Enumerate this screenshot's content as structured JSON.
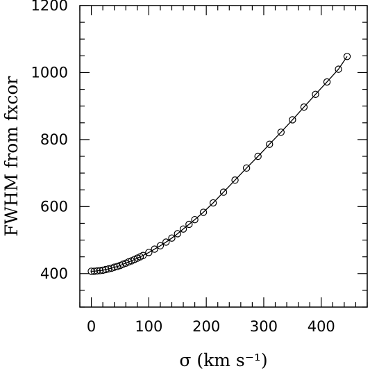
{
  "chart_data": {
    "type": "line",
    "xlabel": "σ   (km s⁻¹)",
    "ylabel": "FWHM from fxcor",
    "xlim": [
      -20,
      480
    ],
    "ylim": [
      300,
      1200
    ],
    "xticks": [
      0,
      100,
      200,
      300,
      400
    ],
    "yticks": [
      400,
      600,
      800,
      1000,
      1200
    ],
    "xtick_labels": [
      "0",
      "100",
      "200",
      "300",
      "400"
    ],
    "ytick_labels": [
      "400",
      "600",
      "800",
      "1000",
      "1200"
    ],
    "x_minor_step": 20,
    "y_minor_step": 50,
    "marker": "open-circle",
    "line_color": "#000000",
    "grid": false,
    "series": [
      {
        "x": [
          0,
          5,
          10,
          15,
          20,
          25,
          30,
          35,
          40,
          45,
          50,
          55,
          60,
          65,
          70,
          75,
          80,
          85,
          90,
          100,
          110,
          120,
          130,
          140,
          150,
          160,
          170,
          180,
          195,
          212,
          230,
          250,
          270,
          290,
          310,
          330,
          350,
          370,
          390,
          410,
          430,
          445
        ],
        "y": [
          407,
          407,
          408,
          409,
          410,
          412,
          414,
          416,
          419,
          421,
          424,
          428,
          431,
          435,
          438,
          442,
          446,
          450,
          454,
          463,
          473,
          483,
          494,
          506,
          519,
          533,
          547,
          561,
          583,
          611,
          643,
          679,
          715,
          750,
          786,
          822,
          859,
          897,
          935,
          972,
          1010,
          1048
        ]
      }
    ]
  }
}
